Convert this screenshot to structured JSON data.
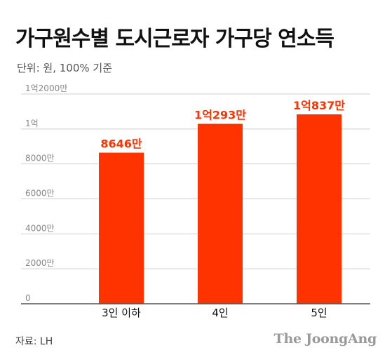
{
  "title": "가구원수별 도시근로자 가구당 연소득",
  "subtitle": "단위: 원, 100% 기준",
  "source": "자료: LH",
  "brand": "The JoongAng",
  "colors": {
    "bar": "#ff3300",
    "label": "#ff3300",
    "grid": "#cfcfcf",
    "tick": "#888888",
    "axis_label": "#111111"
  },
  "chart_data": {
    "type": "bar",
    "categories": [
      "3인 이하",
      "4인",
      "5인"
    ],
    "values": [
      86460000,
      102930000,
      108370000
    ],
    "data_labels": [
      "8646만",
      "1억293만",
      "1억837만"
    ],
    "yticks": [
      {
        "value": 0,
        "label": "0"
      },
      {
        "value": 20000000,
        "label": "2000만"
      },
      {
        "value": 40000000,
        "label": "4000만"
      },
      {
        "value": 60000000,
        "label": "6000만"
      },
      {
        "value": 80000000,
        "label": "8000만"
      },
      {
        "value": 100000000,
        "label": "1억"
      },
      {
        "value": 120000000,
        "label": "1억2000만"
      }
    ],
    "ylim": [
      0,
      120000000
    ],
    "grid": true
  }
}
